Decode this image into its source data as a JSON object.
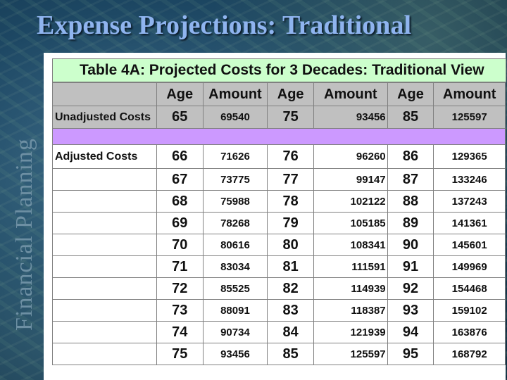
{
  "slide": {
    "title": "Expense Projections: Traditional",
    "side_label": "Financial Planning"
  },
  "table": {
    "title": "Table 4A: Projected Costs for 3 Decades: Traditional View",
    "headers": [
      "",
      "Age",
      "Amount",
      "Age",
      "Amount",
      "Age",
      "Amount"
    ],
    "unadjusted": {
      "label": "Unadjusted Costs",
      "cells": [
        "65",
        "69540",
        "75",
        "93456",
        "85",
        "125597"
      ]
    },
    "adjusted_label": "Adjusted Costs",
    "rows": [
      [
        "66",
        "71626",
        "76",
        "96260",
        "86",
        "129365"
      ],
      [
        "67",
        "73775",
        "77",
        "99147",
        "87",
        "133246"
      ],
      [
        "68",
        "75988",
        "78",
        "102122",
        "88",
        "137243"
      ],
      [
        "69",
        "78268",
        "79",
        "105185",
        "89",
        "141361"
      ],
      [
        "70",
        "80616",
        "80",
        "108341",
        "90",
        "145601"
      ],
      [
        "71",
        "83034",
        "81",
        "111591",
        "91",
        "149969"
      ],
      [
        "72",
        "85525",
        "82",
        "114939",
        "92",
        "154468"
      ],
      [
        "73",
        "88091",
        "83",
        "118387",
        "93",
        "159102"
      ],
      [
        "74",
        "90734",
        "84",
        "121939",
        "94",
        "163876"
      ],
      [
        "75",
        "93456",
        "85",
        "125597",
        "95",
        "168792"
      ]
    ]
  },
  "colors": {
    "title_text": "#8fb4ef",
    "table_title_bg": "#ccffcc",
    "header_bg": "#c0c0c0",
    "band_bg": "#cc99ff"
  }
}
